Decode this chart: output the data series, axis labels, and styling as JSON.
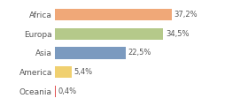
{
  "categories": [
    "Africa",
    "Europa",
    "Asia",
    "America",
    "Oceania"
  ],
  "values": [
    37.2,
    34.5,
    22.5,
    5.4,
    0.4
  ],
  "bar_colors": [
    "#f0a878",
    "#b5c98a",
    "#7b9abf",
    "#f0d070",
    "#e05050"
  ],
  "labels": [
    "37,2%",
    "34,5%",
    "22,5%",
    "5,4%",
    "0,4%"
  ],
  "background_color": "#ffffff",
  "xlim": [
    0,
    52
  ],
  "bar_height": 0.62,
  "label_fontsize": 6.0,
  "tick_fontsize": 6.5
}
